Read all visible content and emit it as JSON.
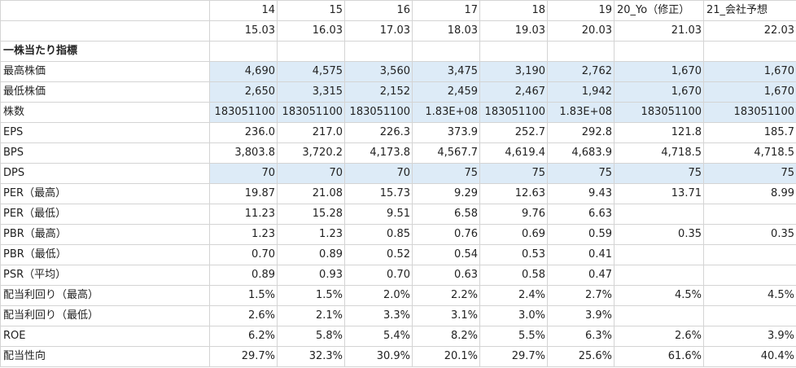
{
  "header_rows": [
    [
      "",
      "14",
      "15",
      "16",
      "17",
      "18",
      "19",
      "20_Yo（修正）",
      "21_会社予想"
    ],
    [
      "",
      "15.03",
      "16.03",
      "17.03",
      "18.03",
      "19.03",
      "20.03",
      "21.03",
      "22.03"
    ]
  ],
  "section_title": "一株当たり指標",
  "rows": [
    {
      "label": "最高株価",
      "values": [
        "4,690",
        "4,575",
        "3,560",
        "3,475",
        "3,190",
        "2,762",
        "1,670",
        "1,670"
      ],
      "highlight": true
    },
    {
      "label": "最低株価",
      "values": [
        "2,650",
        "3,315",
        "2,152",
        "2,459",
        "2,467",
        "1,942",
        "1,670",
        "1,670"
      ],
      "highlight": true
    },
    {
      "label": "株数",
      "values": [
        "183051100",
        "183051100",
        "183051100",
        "1.83E+08",
        "183051100",
        "1.83E+08",
        "183051100",
        "183051100"
      ],
      "highlight": true
    },
    {
      "label": "EPS",
      "values": [
        "236.0",
        "217.0",
        "226.3",
        "373.9",
        "252.7",
        "292.8",
        "121.8",
        "185.7"
      ],
      "highlight": false
    },
    {
      "label": "BPS",
      "values": [
        "3,803.8",
        "3,720.2",
        "4,173.8",
        "4,567.7",
        "4,619.4",
        "4,683.9",
        "4,718.5",
        "4,718.5"
      ],
      "highlight": false
    },
    {
      "label": "DPS",
      "values": [
        "70",
        "70",
        "70",
        "75",
        "75",
        "75",
        "75",
        "75"
      ],
      "highlight": true
    },
    {
      "label": "PER（最高）",
      "values": [
        "19.87",
        "21.08",
        "15.73",
        "9.29",
        "12.63",
        "9.43",
        "13.71",
        "8.99"
      ],
      "highlight": false
    },
    {
      "label": "PER（最低）",
      "values": [
        "11.23",
        "15.28",
        "9.51",
        "6.58",
        "9.76",
        "6.63",
        "",
        ""
      ],
      "highlight": false
    },
    {
      "label": "PBR（最高）",
      "values": [
        "1.23",
        "1.23",
        "0.85",
        "0.76",
        "0.69",
        "0.59",
        "0.35",
        "0.35"
      ],
      "highlight": false
    },
    {
      "label": "PBR（最低）",
      "values": [
        "0.70",
        "0.89",
        "0.52",
        "0.54",
        "0.53",
        "0.41",
        "",
        ""
      ],
      "highlight": false
    },
    {
      "label": "PSR（平均）",
      "values": [
        "0.89",
        "0.93",
        "0.70",
        "0.63",
        "0.58",
        "0.47",
        "",
        ""
      ],
      "highlight": false
    },
    {
      "label": "配当利回り（最高）",
      "values": [
        "1.5%",
        "1.5%",
        "2.0%",
        "2.2%",
        "2.4%",
        "2.7%",
        "4.5%",
        "4.5%"
      ],
      "highlight": false
    },
    {
      "label": "配当利回り（最低）",
      "values": [
        "2.6%",
        "2.1%",
        "3.3%",
        "3.1%",
        "3.0%",
        "3.9%",
        "",
        ""
      ],
      "highlight": false
    },
    {
      "label": "ROE",
      "values": [
        "6.2%",
        "5.8%",
        "5.4%",
        "8.2%",
        "5.5%",
        "6.3%",
        "2.6%",
        "3.9%"
      ],
      "highlight": false
    },
    {
      "label": "配当性向",
      "values": [
        "29.7%",
        "32.3%",
        "30.9%",
        "20.1%",
        "29.7%",
        "25.6%",
        "61.6%",
        "40.4%"
      ],
      "highlight": false
    }
  ],
  "colors": {
    "highlight": "#ddebf7",
    "gridline": "#d4d4d4"
  }
}
